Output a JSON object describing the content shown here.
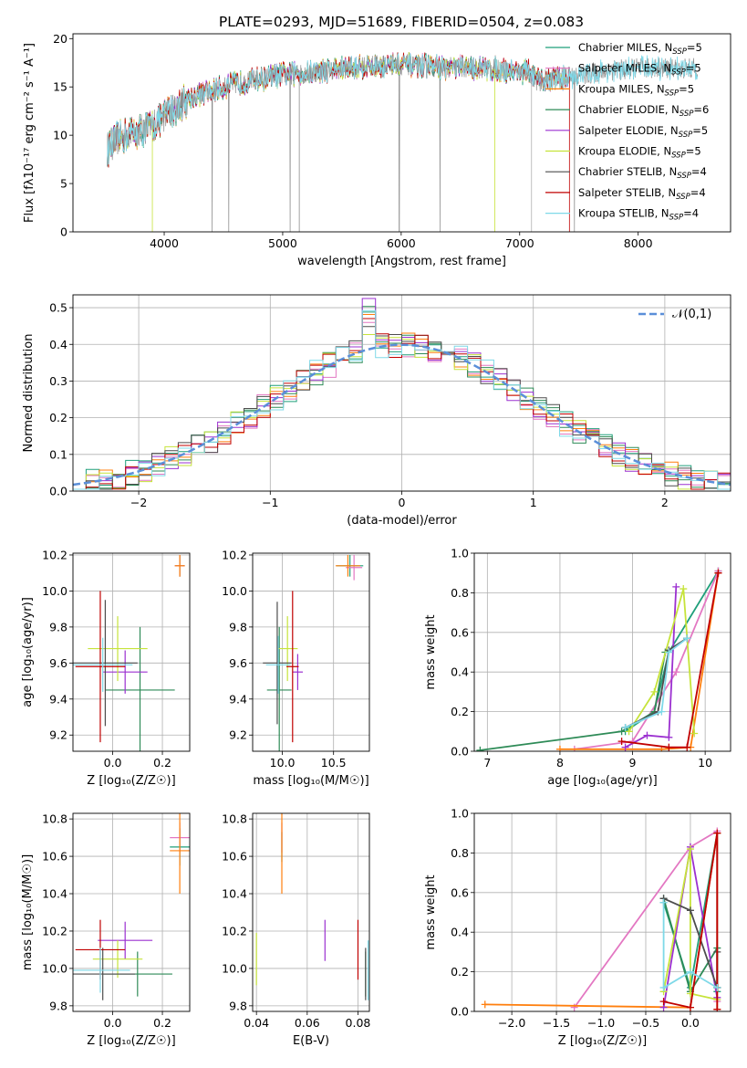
{
  "title": "PLATE=0293, MJD=51689, FIBERID=0504, z=0.083",
  "colors": [
    "#1f9f7a",
    "#e377c2",
    "#ff7f0e",
    "#2e8b57",
    "#9b30d0",
    "#c6e33a",
    "#4d4d4d",
    "#c00000",
    "#7fd9e8"
  ],
  "chart_data": [
    {
      "id": "spectrum",
      "type": "line",
      "xlabel": "wavelength [Angstrom, rest frame]",
      "ylabel": "Flux [fλ10⁻¹⁷ erg cm⁻² s⁻¹ A⁻¹]",
      "xlim": [
        3230,
        8780
      ],
      "ylim": [
        0,
        20.5
      ],
      "xticks": [
        4000,
        5000,
        6000,
        7000,
        8000
      ],
      "yticks": [
        0,
        5,
        10,
        15,
        20
      ],
      "grid": false,
      "legend_position": "top-right",
      "series": [
        {
          "name": "Chabrier MILES, N_SSP=5"
        },
        {
          "name": "Salpeter MILES, N_SSP=5"
        },
        {
          "name": "Kroupa MILES, N_SSP=5"
        },
        {
          "name": "Chabrier ELODIE, N_SSP=6"
        },
        {
          "name": "Salpeter ELODIE, N_SSP=5"
        },
        {
          "name": "Kroupa ELODIE, N_SSP=5"
        },
        {
          "name": "Chabrier STELIB, N_SSP=4"
        },
        {
          "name": "Salpeter STELIB, N_SSP=4"
        },
        {
          "name": "Kroupa STELIB, N_SSP=4"
        }
      ],
      "continuum": {
        "x": [
          3520,
          3600,
          3700,
          3800,
          3900,
          4000,
          4100,
          4200,
          4400,
          4600,
          4800,
          5000,
          5200,
          5400,
          5600,
          5800,
          6000,
          6200,
          6400,
          6600,
          6800,
          7000,
          7080,
          7150,
          7300,
          7500,
          7700,
          7900,
          8100,
          8300,
          8500
        ],
        "y": [
          8.5,
          9.5,
          10.2,
          10.5,
          11.0,
          12.0,
          12.8,
          13.8,
          14.6,
          15.3,
          15.8,
          16.3,
          16.4,
          16.8,
          17.0,
          17.2,
          17.3,
          17.2,
          17.0,
          17.0,
          16.8,
          16.6,
          16.6,
          15.6,
          15.9,
          16.2,
          16.6,
          16.8,
          17.0,
          16.9,
          16.9
        ]
      }
    },
    {
      "id": "residual_hist",
      "type": "histogram",
      "xlabel": "(data-model)/error",
      "ylabel": "Normed distribution",
      "xlim": [
        -2.5,
        2.5
      ],
      "ylim": [
        0,
        0.535
      ],
      "xticks": [
        -2,
        -1,
        0,
        1,
        2
      ],
      "yticks": [
        0.0,
        0.1,
        0.2,
        0.3,
        0.4,
        0.5
      ],
      "grid": true,
      "legend": "𝒩(0,1)",
      "legend_position": "top-right"
    },
    {
      "id": "age_vs_Z",
      "type": "errorbar",
      "xlabel": "Z [log₁₀(Z/Z☉)]",
      "ylabel": "age  [log₁₀(age/yr)]",
      "xlim": [
        -0.16,
        0.31
      ],
      "ylim": [
        9.11,
        10.21
      ],
      "xticks": [
        0.0,
        0.2
      ],
      "yticks": [
        9.2,
        9.4,
        9.6,
        9.8,
        10.0,
        10.2
      ],
      "points": [
        {
          "series": 0,
          "x": 0.27,
          "y": 10.14,
          "xerr": 0.02,
          "yerr": 0.06
        },
        {
          "series": 1,
          "x": 0.27,
          "y": 10.14,
          "xerr": 0.02,
          "yerr": 0.06
        },
        {
          "series": 2,
          "x": 0.27,
          "y": 10.14,
          "xerr": 0.02,
          "yerr": 0.06
        },
        {
          "series": 3,
          "x": 0.11,
          "y": 9.45,
          "xerr": 0.14,
          "yerr": 0.35
        },
        {
          "series": 4,
          "x": 0.05,
          "y": 9.55,
          "xerr": 0.09,
          "yerr": 0.12
        },
        {
          "series": 5,
          "x": 0.02,
          "y": 9.68,
          "xerr": 0.12,
          "yerr": 0.18
        },
        {
          "series": 6,
          "x": -0.03,
          "y": 9.6,
          "xerr": 0.13,
          "yerr": 0.35
        },
        {
          "series": 7,
          "x": -0.05,
          "y": 9.58,
          "xerr": 0.1,
          "yerr": 0.42
        },
        {
          "series": 8,
          "x": -0.04,
          "y": 9.59,
          "xerr": 0.12,
          "yerr": 0.15
        }
      ]
    },
    {
      "id": "age_vs_mass",
      "type": "errorbar",
      "xlabel": "mass [log₁₀(M/M☉)]",
      "ylabel": "",
      "xlim": [
        9.71,
        10.85
      ],
      "ylim": [
        9.11,
        10.21
      ],
      "xticks": [
        10.0,
        10.5
      ],
      "yticks": [
        9.2,
        9.4,
        9.6,
        9.8,
        10.0,
        10.2
      ],
      "points": [
        {
          "series": 0,
          "x": 10.66,
          "y": 10.14,
          "xerr": 0.13,
          "yerr": 0.06
        },
        {
          "series": 1,
          "x": 10.7,
          "y": 10.13,
          "xerr": 0.08,
          "yerr": 0.07
        },
        {
          "series": 2,
          "x": 10.64,
          "y": 10.14,
          "xerr": 0.12,
          "yerr": 0.06
        },
        {
          "series": 3,
          "x": 9.97,
          "y": 9.45,
          "xerr": 0.12,
          "yerr": 0.35
        },
        {
          "series": 4,
          "x": 10.15,
          "y": 9.55,
          "xerr": 0.05,
          "yerr": 0.1
        },
        {
          "series": 5,
          "x": 10.05,
          "y": 9.68,
          "xerr": 0.1,
          "yerr": 0.18
        },
        {
          "series": 6,
          "x": 9.95,
          "y": 9.6,
          "xerr": 0.14,
          "yerr": 0.34
        },
        {
          "series": 7,
          "x": 10.1,
          "y": 9.58,
          "xerr": 0.06,
          "yerr": 0.42
        },
        {
          "series": 8,
          "x": 9.96,
          "y": 9.59,
          "xerr": 0.12,
          "yerr": 0.16
        }
      ]
    },
    {
      "id": "weight_vs_age",
      "type": "line",
      "xlabel": "age  [log₁₀(age/yr)]",
      "ylabel": "mass weight",
      "xlim": [
        6.82,
        10.35
      ],
      "ylim": [
        0,
        1.0
      ],
      "xticks": [
        7,
        8,
        9,
        10
      ],
      "yticks": [
        0.0,
        0.2,
        0.4,
        0.6,
        0.8,
        1.0
      ],
      "grid": true,
      "series": [
        {
          "x": [
            8.9,
            9.3,
            9.5,
            10.18
          ],
          "y": [
            0.1,
            0.2,
            0.5,
            0.91
          ]
        },
        {
          "x": [
            8.2,
            9.0,
            9.6,
            10.18
          ],
          "y": [
            0.01,
            0.05,
            0.4,
            0.91
          ]
        },
        {
          "x": [
            8.0,
            9.4,
            9.8,
            10.18
          ],
          "y": [
            0.01,
            0.01,
            0.02,
            0.9
          ]
        },
        {
          "x": [
            6.9,
            8.85,
            9.3,
            9.45,
            9.75
          ],
          "y": [
            0.005,
            0.1,
            0.2,
            0.5,
            0.57
          ]
        },
        {
          "x": [
            8.9,
            9.2,
            9.5,
            9.6
          ],
          "y": [
            0.02,
            0.08,
            0.07,
            0.83
          ]
        },
        {
          "x": [
            8.95,
            9.3,
            9.7,
            9.85
          ],
          "y": [
            0.1,
            0.3,
            0.82,
            0.09
          ]
        },
        {
          "x": [
            8.9,
            9.35,
            9.5,
            9.75
          ],
          "y": [
            0.12,
            0.2,
            0.51,
            0.57
          ]
        },
        {
          "x": [
            8.85,
            9.5,
            9.75,
            10.18
          ],
          "y": [
            0.05,
            0.02,
            0.02,
            0.9
          ]
        },
        {
          "x": [
            8.9,
            9.4,
            9.5,
            9.75
          ],
          "y": [
            0.12,
            0.2,
            0.5,
            0.57
          ]
        }
      ]
    },
    {
      "id": "mass_vs_Z",
      "type": "errorbar",
      "xlabel": "Z [log₁₀(Z/Z☉)]",
      "ylabel": "mass [log₁₀(M/M☉)]",
      "xlim": [
        -0.16,
        0.31
      ],
      "ylim": [
        9.77,
        10.83
      ],
      "xticks": [
        0.0,
        0.2
      ],
      "yticks": [
        9.8,
        10.0,
        10.2,
        10.4,
        10.6,
        10.8
      ],
      "points": [
        {
          "series": 0,
          "x": 0.27,
          "y": 10.65,
          "xerr": 0.04,
          "yerr": 0.1
        },
        {
          "series": 1,
          "x": 0.27,
          "y": 10.7,
          "xerr": 0.04,
          "yerr": 0.08
        },
        {
          "series": 2,
          "x": 0.27,
          "y": 10.63,
          "xerr": 0.04,
          "yerr": 0.23
        },
        {
          "series": 3,
          "x": 0.1,
          "y": 9.97,
          "xerr": 0.14,
          "yerr": 0.12
        },
        {
          "series": 4,
          "x": 0.05,
          "y": 10.15,
          "xerr": 0.11,
          "yerr": 0.1
        },
        {
          "series": 5,
          "x": 0.02,
          "y": 10.05,
          "xerr": 0.1,
          "yerr": 0.1
        },
        {
          "series": 6,
          "x": -0.04,
          "y": 9.97,
          "xerr": 0.13,
          "yerr": 0.14
        },
        {
          "series": 7,
          "x": -0.05,
          "y": 10.1,
          "xerr": 0.1,
          "yerr": 0.16
        },
        {
          "series": 8,
          "x": -0.05,
          "y": 9.99,
          "xerr": 0.12,
          "yerr": 0.12
        }
      ]
    },
    {
      "id": "mass_vs_EBV",
      "type": "errorbar",
      "xlabel": "E(B-V)",
      "ylabel": "",
      "xlim": [
        0.0385,
        0.0845
      ],
      "ylim": [
        9.77,
        10.83
      ],
      "xticks": [
        0.04,
        0.06,
        0.08
      ],
      "yticks": [
        9.8,
        10.0,
        10.2,
        10.4,
        10.6,
        10.8
      ],
      "points": [
        {
          "series": 0,
          "x": 0.05,
          "y": 10.65,
          "yerr": 0.08
        },
        {
          "series": 1,
          "x": 0.05,
          "y": 10.7,
          "yerr": 0.08
        },
        {
          "series": 2,
          "x": 0.05,
          "y": 10.63,
          "yerr": 0.23
        },
        {
          "series": 3,
          "x": 0.083,
          "y": 9.97,
          "yerr": 0.12
        },
        {
          "series": 4,
          "x": 0.067,
          "y": 10.15,
          "yerr": 0.11
        },
        {
          "series": 5,
          "x": 0.04,
          "y": 10.05,
          "yerr": 0.14
        },
        {
          "series": 6,
          "x": 0.083,
          "y": 9.97,
          "yerr": 0.14
        },
        {
          "series": 7,
          "x": 0.08,
          "y": 10.1,
          "yerr": 0.16
        },
        {
          "series": 8,
          "x": 0.084,
          "y": 9.99,
          "yerr": 0.16
        }
      ]
    },
    {
      "id": "weight_vs_Z",
      "type": "line",
      "xlabel": "Z [log₁₀(Z/Z☉)]",
      "ylabel": "mass weight",
      "xlim": [
        -2.42,
        0.45
      ],
      "ylim": [
        0,
        1.0
      ],
      "xticks": [
        -2.0,
        -1.5,
        -1.0,
        -0.5,
        0.0
      ],
      "yticks": [
        0.0,
        0.2,
        0.4,
        0.6,
        0.8,
        1.0
      ],
      "grid": true,
      "series": [
        {
          "x": [
            -0.3,
            0.0,
            0.3,
            0.3
          ],
          "y": [
            0.55,
            0.12,
            0.9,
            0.1
          ]
        },
        {
          "x": [
            -1.3,
            0.0,
            0.3,
            0.3
          ],
          "y": [
            0.02,
            0.83,
            0.91,
            0.05
          ]
        },
        {
          "x": [
            -2.3,
            0.0,
            0.3,
            0.3
          ],
          "y": [
            0.035,
            0.02,
            0.9,
            0.01
          ]
        },
        {
          "x": [
            -0.3,
            0.0,
            0.3,
            0.3
          ],
          "y": [
            0.57,
            0.1,
            0.32,
            0.12
          ]
        },
        {
          "x": [
            -0.3,
            0.0,
            0.3
          ],
          "y": [
            0.02,
            0.83,
            0.07
          ]
        },
        {
          "x": [
            -0.3,
            0.0,
            0.0,
            0.3
          ],
          "y": [
            0.1,
            0.82,
            0.09,
            0.06
          ]
        },
        {
          "x": [
            -0.3,
            0.0,
            0.3,
            0.3
          ],
          "y": [
            0.57,
            0.51,
            0.12,
            0.3
          ]
        },
        {
          "x": [
            -0.3,
            0.0,
            0.3,
            0.3
          ],
          "y": [
            0.05,
            0.02,
            0.9,
            0.01
          ]
        },
        {
          "x": [
            -0.3,
            -0.3,
            0.0,
            0.3
          ],
          "y": [
            0.55,
            0.12,
            0.2,
            0.12
          ]
        }
      ]
    }
  ]
}
